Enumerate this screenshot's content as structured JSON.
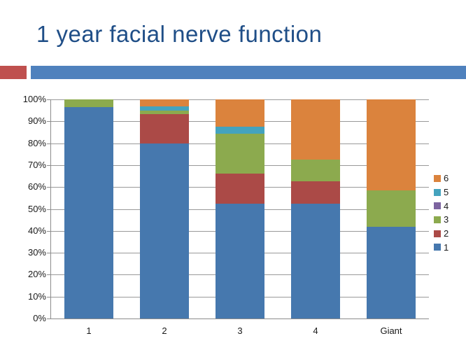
{
  "slide": {
    "title": "1 year facial nerve function",
    "title_color": "#1f4e87",
    "theme": {
      "red_square_color": "#bf504e",
      "divider_bar_color": "#4f81bd"
    }
  },
  "chart_data": {
    "type": "bar",
    "subtype": "100%-stacked-column",
    "title": "",
    "xlabel": "",
    "ylabel": "",
    "categories": [
      "1",
      "2",
      "3",
      "4",
      "Giant"
    ],
    "series": [
      {
        "name": "1",
        "color": "#4678ae",
        "values": [
          96.5,
          80.0,
          52.5,
          52.5,
          42.0
        ]
      },
      {
        "name": "2",
        "color": "#ab4a47",
        "values": [
          0,
          13.3,
          13.5,
          10.0,
          0
        ]
      },
      {
        "name": "3",
        "color": "#8caa4e",
        "values": [
          3.5,
          1.7,
          18.5,
          10.0,
          16.5
        ]
      },
      {
        "name": "4",
        "color": "#7d64a0",
        "values": [
          0,
          0,
          0,
          0,
          0
        ]
      },
      {
        "name": "5",
        "color": "#44a3be",
        "values": [
          0,
          1.7,
          3.0,
          0,
          0
        ]
      },
      {
        "name": "6",
        "color": "#db833d",
        "values": [
          0,
          3.3,
          12.5,
          27.5,
          41.5
        ]
      }
    ],
    "y_ticks": [
      "0%",
      "10%",
      "20%",
      "30%",
      "40%",
      "50%",
      "60%",
      "70%",
      "80%",
      "90%",
      "100%"
    ],
    "ylim": [
      0,
      100
    ],
    "grid": true,
    "gridline_color": "#999999",
    "axis_color": "#8c8c8c",
    "legend_position": "right",
    "legend_order_top_to_bottom": [
      "6",
      "5",
      "4",
      "3",
      "2",
      "1"
    ]
  }
}
